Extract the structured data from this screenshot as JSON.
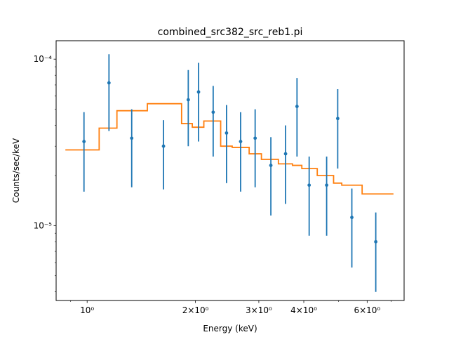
{
  "chart_data": {
    "type": "scatter",
    "title": "combined_src382_src_reb1.pi",
    "xlabel": "Energy (keV)",
    "ylabel": "Counts/sec/keV",
    "xscale": "log",
    "yscale": "log",
    "xlim": [
      0.82,
      7.6
    ],
    "ylim": [
      3.55e-06,
      0.000129
    ],
    "x_tick_labels": [
      {
        "value": 1,
        "text": "10⁰"
      },
      {
        "value": 2,
        "text": "2×10⁰"
      },
      {
        "value": 3,
        "text": "3×10⁰"
      },
      {
        "value": 4,
        "text": "4×10⁰"
      },
      {
        "value": 6,
        "text": "6×10⁰"
      }
    ],
    "y_tick_labels": [
      {
        "value": 1e-05,
        "text": "10⁻⁵"
      },
      {
        "value": 0.0001,
        "text": "10⁻⁴"
      }
    ],
    "series": [
      {
        "kind": "data",
        "color": "#1f77b4",
        "x": [
          0.98,
          1.15,
          1.33,
          1.63,
          1.91,
          2.04,
          2.24,
          2.44,
          2.67,
          2.93,
          3.24,
          3.56,
          3.83,
          4.14,
          4.63,
          4.97,
          5.44,
          6.34
        ],
        "y": [
          3.2e-05,
          7.2e-05,
          3.35e-05,
          3e-05,
          5.7e-05,
          6.35e-05,
          4.8e-05,
          3.6e-05,
          3.2e-05,
          3.35e-05,
          2.3e-05,
          2.7e-05,
          5.2e-05,
          1.75e-05,
          1.75e-05,
          4.4e-05,
          1.12e-05,
          8e-06
        ],
        "ylo": [
          1.6e-05,
          3.7e-05,
          1.7e-05,
          1.65e-05,
          3e-05,
          3.2e-05,
          2.6e-05,
          1.8e-05,
          1.6e-05,
          1.7e-05,
          1.15e-05,
          1.35e-05,
          2.6e-05,
          8.7e-06,
          8.7e-06,
          2.2e-05,
          5.6e-06,
          4e-06
        ],
        "yhi": [
          4.8e-05,
          0.000107,
          5e-05,
          4.3e-05,
          8.6e-05,
          9.5e-05,
          6.9e-05,
          5.3e-05,
          4.8e-05,
          5e-05,
          3.4e-05,
          4e-05,
          7.7e-05,
          2.6e-05,
          2.6e-05,
          6.6e-05,
          1.67e-05,
          1.2e-05
        ]
      },
      {
        "kind": "model",
        "color": "#ff7f0e",
        "edges": [
          0.87,
          1.08,
          1.21,
          1.47,
          1.83,
          1.96,
          2.11,
          2.35,
          2.53,
          2.82,
          3.05,
          3.4,
          3.72,
          3.95,
          4.36,
          4.84,
          5.1,
          5.81,
          7.1
        ],
        "values": [
          2.85e-05,
          3.85e-05,
          4.9e-05,
          5.4e-05,
          4.1e-05,
          3.9e-05,
          4.25e-05,
          3e-05,
          2.95e-05,
          2.7e-05,
          2.5e-05,
          2.35e-05,
          2.3e-05,
          2.2e-05,
          2e-05,
          1.8e-05,
          1.75e-05,
          1.55e-05
        ]
      }
    ]
  }
}
